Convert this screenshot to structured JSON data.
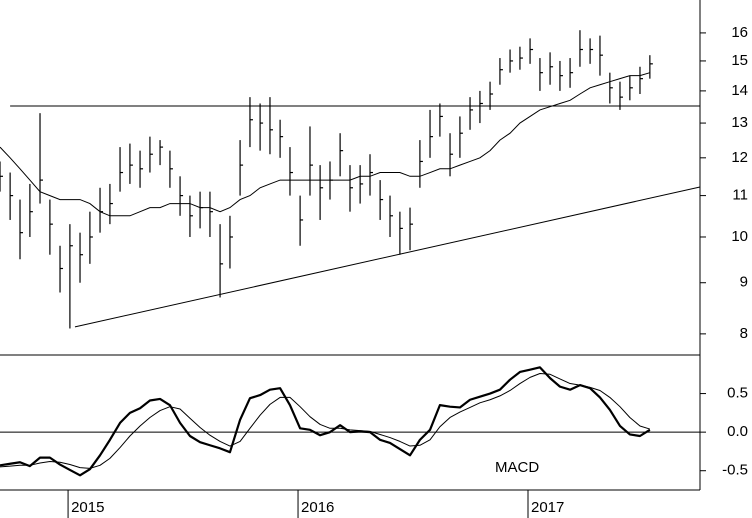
{
  "chart_data": [
    {
      "type": "ohlc",
      "log": true,
      "color": "#000000",
      "ylim": [
        7.62,
        17.26
      ],
      "yticks": [
        8,
        9,
        10,
        11,
        12,
        13,
        14,
        15,
        16
      ],
      "xlim": [
        2014.704,
        2017.748
      ],
      "x": [
        2014.704,
        2014.748,
        2014.791,
        2014.834,
        2014.878,
        2014.921,
        2014.965,
        2015.008,
        2015.052,
        2015.095,
        2015.139,
        2015.182,
        2015.226,
        2015.269,
        2015.313,
        2015.356,
        2015.4,
        2015.443,
        2015.487,
        2015.53,
        2015.574,
        2015.617,
        2015.661,
        2015.704,
        2015.748,
        2015.791,
        2015.835,
        2015.878,
        2015.922,
        2015.965,
        2016.009,
        2016.052,
        2016.096,
        2016.139,
        2016.183,
        2016.226,
        2016.27,
        2016.313,
        2016.357,
        2016.4,
        2016.443,
        2016.487,
        2016.53,
        2016.574,
        2016.617,
        2016.661,
        2016.704,
        2016.748,
        2016.791,
        2016.835,
        2016.878,
        2016.922,
        2016.965,
        2017.009,
        2017.052,
        2017.096,
        2017.139,
        2017.183,
        2017.226,
        2017.27,
        2017.313,
        2017.356,
        2017.4,
        2017.443,
        2017.487,
        2017.53
      ],
      "high": [
        11.9,
        11.6,
        10.9,
        11.3,
        13.3,
        10.9,
        9.8,
        10.3,
        10.1,
        10.6,
        11.2,
        11.3,
        12.3,
        12.4,
        12.2,
        12.6,
        12.5,
        12.2,
        11.5,
        11.0,
        11.1,
        11.1,
        10.3,
        10.5,
        12.5,
        13.8,
        13.6,
        13.8,
        13.1,
        12.3,
        11.0,
        12.9,
        11.8,
        11.9,
        12.7,
        11.8,
        11.8,
        12.1,
        11.4,
        11.0,
        10.6,
        10.7,
        12.5,
        13.4,
        13.6,
        12.7,
        13.2,
        13.8,
        14.0,
        14.3,
        15.1,
        15.4,
        15.5,
        15.8,
        15.1,
        15.3,
        15.0,
        15.1,
        16.1,
        15.8,
        15.9,
        14.6,
        14.3,
        14.5,
        14.8,
        15.2
      ],
      "low": [
        11.1,
        10.4,
        9.5,
        10.0,
        10.8,
        9.6,
        8.8,
        8.1,
        9.0,
        9.4,
        10.1,
        10.3,
        11.1,
        11.3,
        11.2,
        11.6,
        11.8,
        11.2,
        10.5,
        10.0,
        10.2,
        10.0,
        8.7,
        9.3,
        11.0,
        12.3,
        12.2,
        12.1,
        12.0,
        11.0,
        9.8,
        11.0,
        10.4,
        10.9,
        11.5,
        10.6,
        10.8,
        11.0,
        10.4,
        10.0,
        9.6,
        9.7,
        11.2,
        12.0,
        12.6,
        11.5,
        12.0,
        12.8,
        13.0,
        13.4,
        14.2,
        14.6,
        14.7,
        14.9,
        14.0,
        14.2,
        14.0,
        14.1,
        14.8,
        14.9,
        14.5,
        13.6,
        13.4,
        13.7,
        13.9,
        14.4
      ],
      "close": [
        11.5,
        11.0,
        10.1,
        10.6,
        11.4,
        10.3,
        9.3,
        9.8,
        9.6,
        10.0,
        10.6,
        10.8,
        11.6,
        11.8,
        11.7,
        12.1,
        12.3,
        11.7,
        11.0,
        10.5,
        10.7,
        10.6,
        9.4,
        10.0,
        11.8,
        13.1,
        13.0,
        12.8,
        12.6,
        11.6,
        10.4,
        11.8,
        11.2,
        11.4,
        12.2,
        11.2,
        11.3,
        11.6,
        10.9,
        10.5,
        10.2,
        10.3,
        11.9,
        12.6,
        13.2,
        12.1,
        12.7,
        13.4,
        13.6,
        13.9,
        14.7,
        15.0,
        15.1,
        15.4,
        14.6,
        14.8,
        14.5,
        14.6,
        15.4,
        15.4,
        15.2,
        14.1,
        13.8,
        14.1,
        14.4,
        14.9
      ],
      "ma": [
        12.3,
        12.0,
        11.7,
        11.4,
        11.1,
        11.0,
        10.9,
        10.9,
        10.9,
        10.8,
        10.6,
        10.5,
        10.5,
        10.5,
        10.6,
        10.7,
        10.7,
        10.8,
        10.8,
        10.8,
        10.7,
        10.7,
        10.6,
        10.7,
        10.9,
        11.0,
        11.2,
        11.3,
        11.4,
        11.4,
        11.4,
        11.4,
        11.4,
        11.4,
        11.4,
        11.4,
        11.5,
        11.5,
        11.6,
        11.6,
        11.6,
        11.5,
        11.5,
        11.6,
        11.7,
        11.7,
        11.8,
        11.9,
        12.0,
        12.2,
        12.5,
        12.7,
        13.0,
        13.2,
        13.4,
        13.5,
        13.6,
        13.7,
        13.9,
        14.1,
        14.2,
        14.3,
        14.4,
        14.5,
        14.5,
        14.6
      ],
      "trendlines": [
        {
          "x": [
            2015.03,
            2017.748
          ],
          "values": [
            8.13,
            11.22
          ]
        },
        {
          "x": [
            2014.748,
            2017.748
          ],
          "values": [
            13.52,
            13.52
          ]
        }
      ]
    },
    {
      "type": "line",
      "label": "MACD",
      "color": "#000000",
      "ylim": [
        -0.75,
        1.0
      ],
      "yticks": [
        {
          "value": 0.5,
          "label": "0.5"
        },
        {
          "value": 0,
          "label": "0.0"
        },
        {
          "value": -0.5,
          "label": "-0.5"
        }
      ],
      "xlim": [
        2014.704,
        2017.748
      ],
      "xticks": [
        2015,
        2016,
        2017
      ],
      "x": [
        2014.704,
        2014.748,
        2014.791,
        2014.834,
        2014.878,
        2014.921,
        2014.965,
        2015.008,
        2015.052,
        2015.095,
        2015.139,
        2015.182,
        2015.226,
        2015.269,
        2015.313,
        2015.356,
        2015.4,
        2015.443,
        2015.487,
        2015.53,
        2015.574,
        2015.617,
        2015.661,
        2015.704,
        2015.748,
        2015.791,
        2015.835,
        2015.878,
        2015.922,
        2015.965,
        2016.009,
        2016.052,
        2016.096,
        2016.139,
        2016.183,
        2016.226,
        2016.27,
        2016.313,
        2016.357,
        2016.4,
        2016.443,
        2016.487,
        2016.53,
        2016.574,
        2016.617,
        2016.661,
        2016.704,
        2016.748,
        2016.791,
        2016.835,
        2016.878,
        2016.922,
        2016.965,
        2017.009,
        2017.052,
        2017.096,
        2017.139,
        2017.183,
        2017.226,
        2017.27,
        2017.313,
        2017.356,
        2017.4,
        2017.443,
        2017.487,
        2017.53
      ],
      "series": [
        {
          "width": 2.2,
          "values": [
            -0.43,
            -0.41,
            -0.39,
            -0.44,
            -0.33,
            -0.33,
            -0.42,
            -0.49,
            -0.56,
            -0.48,
            -0.3,
            -0.1,
            0.12,
            0.25,
            0.31,
            0.41,
            0.43,
            0.35,
            0.12,
            -0.05,
            -0.13,
            -0.17,
            -0.21,
            -0.26,
            0.16,
            0.44,
            0.48,
            0.55,
            0.57,
            0.35,
            0.05,
            0.03,
            -0.04,
            0.0,
            0.09,
            0.0,
            0.01,
            0.0,
            -0.1,
            -0.14,
            -0.22,
            -0.3,
            -0.1,
            0.03,
            0.35,
            0.33,
            0.32,
            0.42,
            0.46,
            0.5,
            0.55,
            0.68,
            0.78,
            0.81,
            0.84,
            0.7,
            0.59,
            0.55,
            0.61,
            0.57,
            0.45,
            0.29,
            0.08,
            -0.03,
            -0.05,
            0.03
          ]
        },
        {
          "width": 1,
          "values": [
            -0.45,
            -0.44,
            -0.43,
            -0.43,
            -0.4,
            -0.38,
            -0.39,
            -0.42,
            -0.46,
            -0.47,
            -0.43,
            -0.34,
            -0.2,
            -0.05,
            0.08,
            0.19,
            0.28,
            0.33,
            0.3,
            0.18,
            0.06,
            -0.04,
            -0.12,
            -0.18,
            -0.12,
            0.05,
            0.22,
            0.36,
            0.45,
            0.45,
            0.33,
            0.2,
            0.1,
            0.05,
            0.05,
            0.03,
            0.02,
            0.01,
            -0.03,
            -0.07,
            -0.12,
            -0.18,
            -0.17,
            -0.1,
            0.07,
            0.19,
            0.26,
            0.32,
            0.38,
            0.42,
            0.47,
            0.54,
            0.63,
            0.71,
            0.76,
            0.75,
            0.69,
            0.63,
            0.61,
            0.58,
            0.54,
            0.45,
            0.33,
            0.19,
            0.08,
            0.04
          ]
        }
      ]
    }
  ]
}
